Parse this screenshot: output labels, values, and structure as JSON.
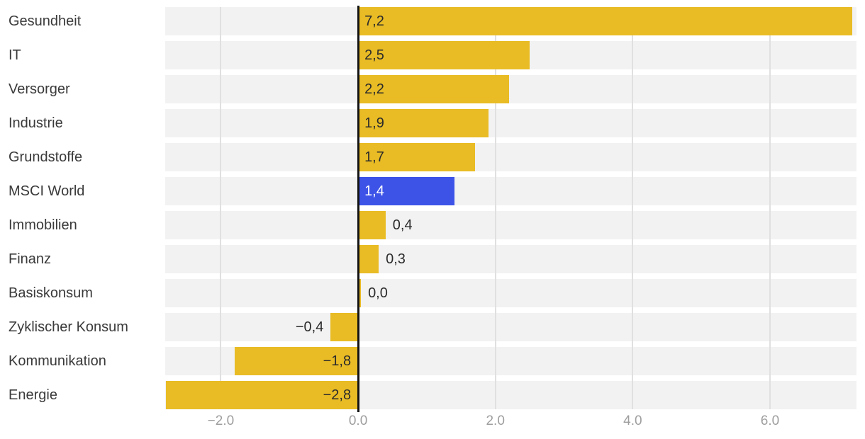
{
  "chart_data": {
    "type": "bar",
    "orientation": "horizontal",
    "title": "",
    "xlabel": "",
    "ylabel": "",
    "categories": [
      "Gesundheit",
      "IT",
      "Versorger",
      "Industrie",
      "Grundstoffe",
      "MSCI World",
      "Immobilien",
      "Finanz",
      "Basiskonsum",
      "Zyklischer Konsum",
      "Kommunikation",
      "Energie"
    ],
    "values": [
      7.2,
      2.5,
      2.2,
      1.9,
      1.7,
      1.4,
      0.4,
      0.3,
      0.0,
      -0.4,
      -1.8,
      -2.8
    ],
    "value_labels": [
      "7,2",
      "2,5",
      "2,2",
      "1,9",
      "1,7",
      "1,4",
      "0,4",
      "0,3",
      "0,0",
      "−0,4",
      "−1,8",
      "−2,8"
    ],
    "highlight_category": "MSCI World",
    "highlight_index": 5,
    "x_ticks": [
      -2,
      0,
      2,
      4,
      6
    ],
    "x_tick_labels": [
      "−2.0",
      "0.0",
      "2.0",
      "4.0",
      "6.0"
    ],
    "xlim": [
      -2.81,
      7.26
    ],
    "grid": true,
    "legend": "none",
    "colors": {
      "bar": "#E9BC25",
      "highlight_bar": "#3D53E8",
      "row_background": "#F2F2F2",
      "gridline": "#E0E0E0",
      "zero_line": "#141414",
      "category_text": "#3A3A3A",
      "value_text": "#2B2B2B",
      "value_text_on_highlight": "#FFFFFF",
      "tick_text": "#9E9E9E",
      "background": "#FFFFFF"
    }
  }
}
